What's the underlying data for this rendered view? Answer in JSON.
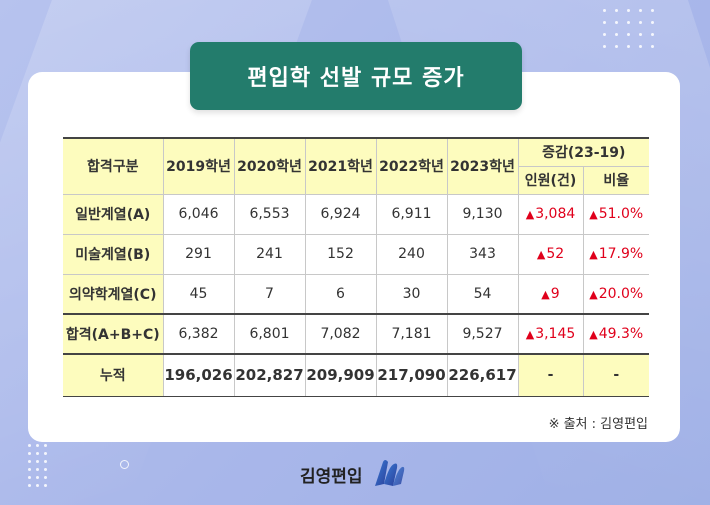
{
  "title": "편입학 선발 규모 증가",
  "table": {
    "header": {
      "category": "합격구분",
      "years": [
        "2019학년",
        "2020학년",
        "2021학년",
        "2022학년",
        "2023학년"
      ],
      "change_group": "증감(23-19)",
      "change_count": "인원(건)",
      "change_rate": "비율"
    },
    "rows": [
      {
        "label": "일반계열(A)",
        "values": [
          "6,046",
          "6,553",
          "6,924",
          "6,911",
          "9,130"
        ],
        "change_count": "3,084",
        "change_rate": "51.0%"
      },
      {
        "label": "미술계열(B)",
        "values": [
          "291",
          "241",
          "152",
          "240",
          "343"
        ],
        "change_count": "52",
        "change_rate": "17.9%"
      },
      {
        "label": "의약학계열(C)",
        "values": [
          "45",
          "7",
          "6",
          "30",
          "54"
        ],
        "change_count": "9",
        "change_rate": "20.0%"
      }
    ],
    "sum": {
      "label": "합격(A+B+C)",
      "values": [
        "6,382",
        "6,801",
        "7,082",
        "7,181",
        "9,527"
      ],
      "change_count": "3,145",
      "change_rate": "49.3%"
    },
    "cumulative": {
      "label": "누적",
      "values": [
        "196,026",
        "202,827",
        "209,909",
        "217,090",
        "226,617"
      ],
      "change_count": "-",
      "change_rate": "-"
    }
  },
  "increase_marker": "▲",
  "source": "※ 출처 : 김영편입",
  "brand": {
    "name": "김영편입"
  },
  "colors": {
    "title_bg": "#237c6c",
    "header_bg": "#fdfcbe",
    "increase": "#e0001b",
    "background": "#aab8ea"
  }
}
